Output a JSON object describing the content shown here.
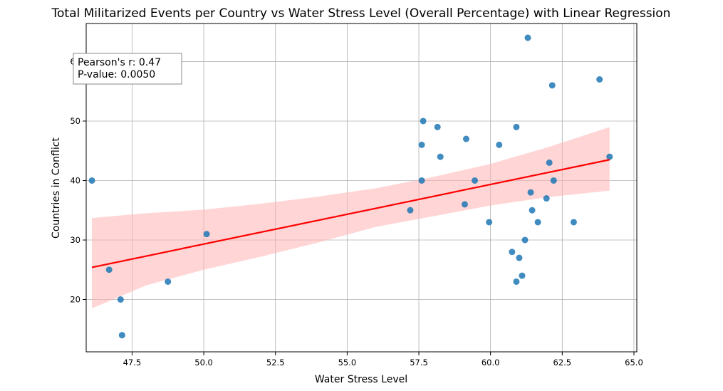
{
  "chart_data": {
    "type": "scatter",
    "title": "Total Militarized Events per Country vs Water Stress Level (Overall Percentage) with Linear Regression",
    "xlabel": "Water Stress Level",
    "ylabel": "Countries in Conflict",
    "xlim": [
      45.9,
      65.1
    ],
    "ylim": [
      11.2,
      66.4
    ],
    "xticks": [
      47.5,
      50.0,
      52.5,
      55.0,
      57.5,
      60.0,
      62.5,
      65.0
    ],
    "xtick_labels": [
      "47.5",
      "50.0",
      "52.5",
      "55.0",
      "57.5",
      "60.0",
      "62.5",
      "65.0"
    ],
    "yticks": [
      20,
      30,
      40,
      50,
      60
    ],
    "ytick_labels": [
      "20",
      "30",
      "40",
      "50",
      "60"
    ],
    "grid": true,
    "points": [
      {
        "x": 46.1,
        "y": 40
      },
      {
        "x": 46.7,
        "y": 25
      },
      {
        "x": 47.1,
        "y": 20
      },
      {
        "x": 47.15,
        "y": 14
      },
      {
        "x": 48.75,
        "y": 23
      },
      {
        "x": 50.1,
        "y": 31
      },
      {
        "x": 57.2,
        "y": 35
      },
      {
        "x": 57.6,
        "y": 46
      },
      {
        "x": 57.6,
        "y": 40
      },
      {
        "x": 57.65,
        "y": 50
      },
      {
        "x": 58.15,
        "y": 49
      },
      {
        "x": 58.25,
        "y": 44
      },
      {
        "x": 59.1,
        "y": 36
      },
      {
        "x": 59.15,
        "y": 47
      },
      {
        "x": 59.45,
        "y": 40
      },
      {
        "x": 59.95,
        "y": 33
      },
      {
        "x": 60.3,
        "y": 46
      },
      {
        "x": 60.75,
        "y": 28
      },
      {
        "x": 60.9,
        "y": 49
      },
      {
        "x": 60.9,
        "y": 23
      },
      {
        "x": 61.0,
        "y": 27
      },
      {
        "x": 61.1,
        "y": 24
      },
      {
        "x": 61.2,
        "y": 30
      },
      {
        "x": 61.3,
        "y": 64
      },
      {
        "x": 61.4,
        "y": 38
      },
      {
        "x": 61.45,
        "y": 35
      },
      {
        "x": 61.65,
        "y": 33
      },
      {
        "x": 61.95,
        "y": 37
      },
      {
        "x": 62.05,
        "y": 43
      },
      {
        "x": 62.15,
        "y": 56
      },
      {
        "x": 62.2,
        "y": 40
      },
      {
        "x": 62.9,
        "y": 33
      },
      {
        "x": 63.8,
        "y": 57
      },
      {
        "x": 64.15,
        "y": 44
      }
    ],
    "regression": {
      "x": [
        46.1,
        64.15
      ],
      "y": [
        25.4,
        43.5
      ]
    },
    "confidence_band": {
      "x": [
        46.1,
        48.0,
        50.0,
        52.0,
        54.0,
        56.0,
        58.0,
        60.0,
        62.0,
        64.15
      ],
      "upper": [
        33.7,
        34.5,
        35.1,
        36.1,
        37.3,
        38.7,
        40.6,
        42.8,
        45.6,
        49.0
      ],
      "lower": [
        18.5,
        22.4,
        25.0,
        27.2,
        29.6,
        32.2,
        34.0,
        35.8,
        37.2,
        38.3
      ]
    },
    "colors": {
      "points": "#1f77b4",
      "regression": "#ff0000",
      "band": "#ffb3b3",
      "grid": "#b0b0b0"
    },
    "annotation": {
      "line1": "Pearson's r: 0.47",
      "line2": "P-value: 0.0050",
      "placement": "top-left"
    }
  }
}
